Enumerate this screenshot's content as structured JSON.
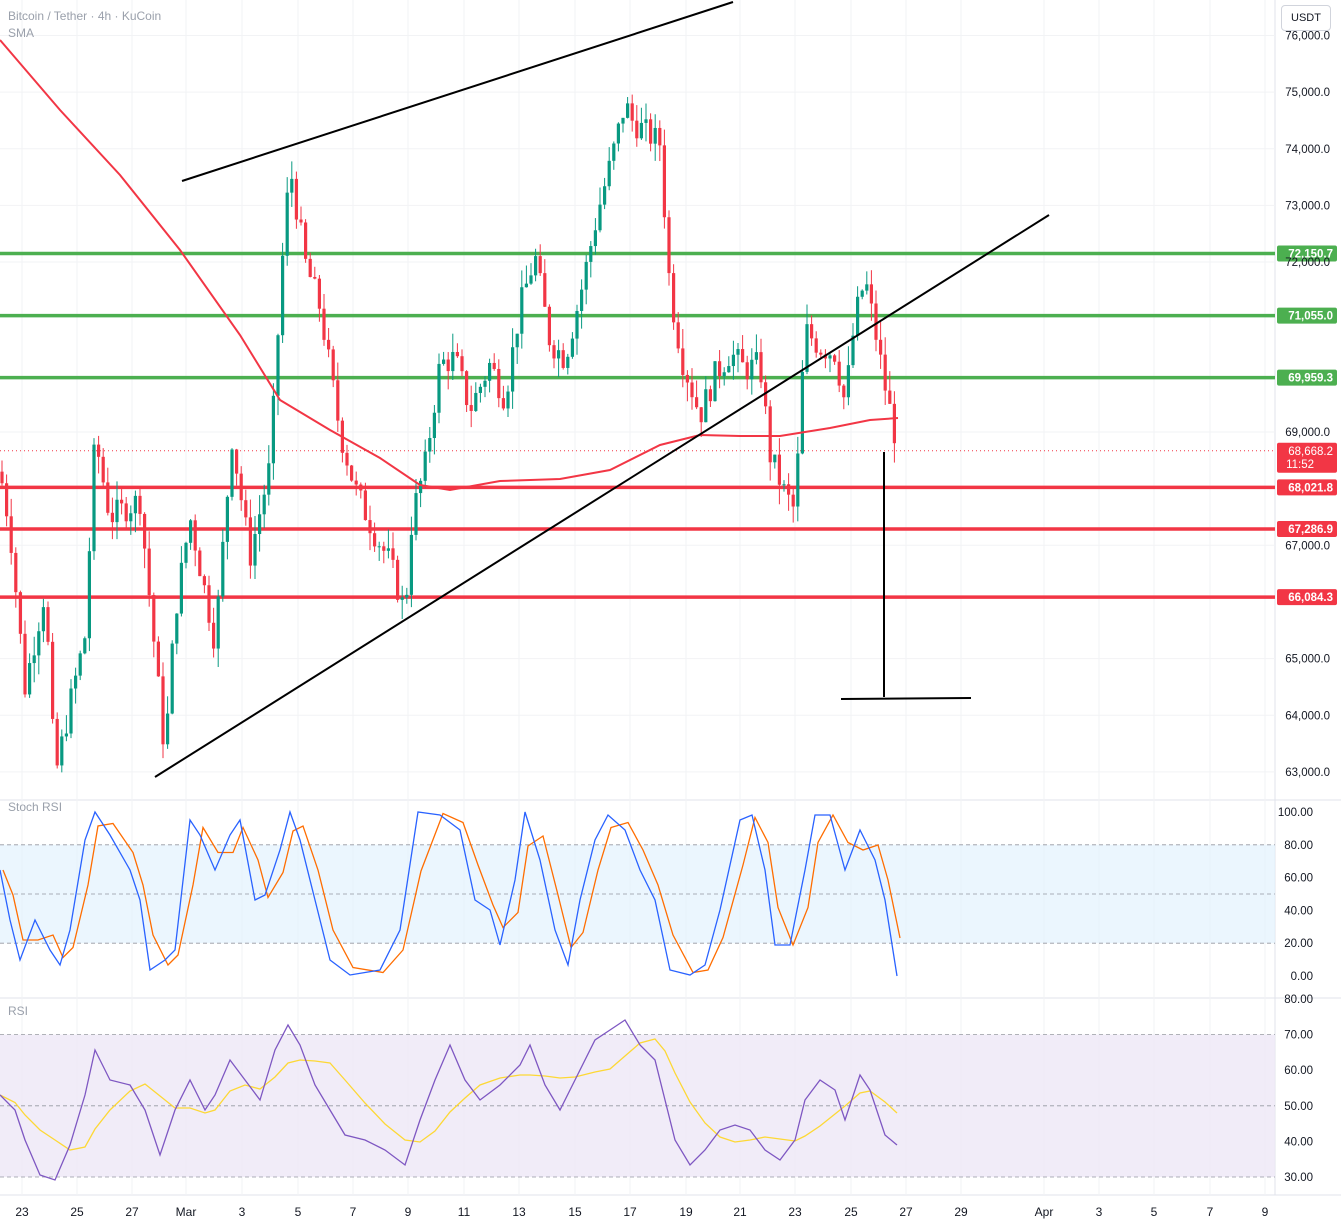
{
  "header": {
    "symbol": "Bitcoin / Tether · 4h · KuCoin",
    "indicator": "SMA",
    "currency_button": "USDT"
  },
  "price_pane": {
    "y_ticks": [
      "76,000.0",
      "75,000.0",
      "74,000.0",
      "73,000.0",
      "72,000.0",
      "69,000.0",
      "67,000.0",
      "65,000.0",
      "64,000.0",
      "63,000.0"
    ],
    "green_levels": [
      {
        "price": 72150.7,
        "label": "72,150.7"
      },
      {
        "price": 71055.0,
        "label": "71,055.0"
      },
      {
        "price": 69959.3,
        "label": "69,959.3"
      }
    ],
    "red_levels": [
      {
        "price": 68021.8,
        "label": "68,021.8"
      },
      {
        "price": 67286.9,
        "label": "67,286.9"
      },
      {
        "price": 66084.3,
        "label": "66,084.3"
      }
    ],
    "current_price": {
      "label": "68,668.2",
      "countdown": "11:52"
    },
    "colors": {
      "up": "#089981",
      "down": "#f23645",
      "sma": "#f23645",
      "support": "#4caf50",
      "resistance": "#f23645"
    }
  },
  "stoch_rsi": {
    "label": "Stoch RSI",
    "y_ticks": [
      "100.00",
      "80.00",
      "60.00",
      "40.00",
      "20.00",
      "0.00"
    ],
    "colors": {
      "k": "#2962ff",
      "d": "#ff6d00",
      "band": "#e3f2fd"
    }
  },
  "rsi": {
    "label": "RSI",
    "y_ticks": [
      "80.00",
      "70.00",
      "60.00",
      "50.00",
      "40.00",
      "30.00"
    ],
    "colors": {
      "rsi": "#7e57c2",
      "ma": "#fdd835",
      "band": "#ede7f6"
    }
  },
  "x_axis": {
    "labels": [
      "23",
      "25",
      "27",
      "Mar",
      "3",
      "5",
      "7",
      "9",
      "11",
      "13",
      "15",
      "17",
      "19",
      "21",
      "23",
      "25",
      "27",
      "29",
      "Apr",
      "3",
      "5",
      "7",
      "9"
    ]
  },
  "chart_data": {
    "type": "candlestick",
    "symbol": "Bitcoin / Tether",
    "interval": "4h",
    "exchange": "KuCoin",
    "currency": "USDT",
    "price_range_visible": [
      62800,
      76100
    ],
    "horizontal_levels": [
      72150.7,
      71055.0,
      69959.3,
      68021.8,
      67286.9,
      66084.3
    ],
    "last_price": 68668.2,
    "key_points": [
      {
        "date": "Feb 24",
        "approx_low": 62700
      },
      {
        "date": "Mar 5",
        "approx_high": 74100
      },
      {
        "date": "Mar 9",
        "approx_low": 65700
      },
      {
        "date": "Mar 14",
        "approx_high": 73900
      },
      {
        "date": "Mar 17",
        "approx_high": 76000
      },
      {
        "date": "Mar 23",
        "approx_low": 67400
      },
      {
        "date": "Mar 26",
        "approx_high": 71900
      },
      {
        "date": "Mar 26",
        "approx_last": 68668.2
      }
    ]
  }
}
